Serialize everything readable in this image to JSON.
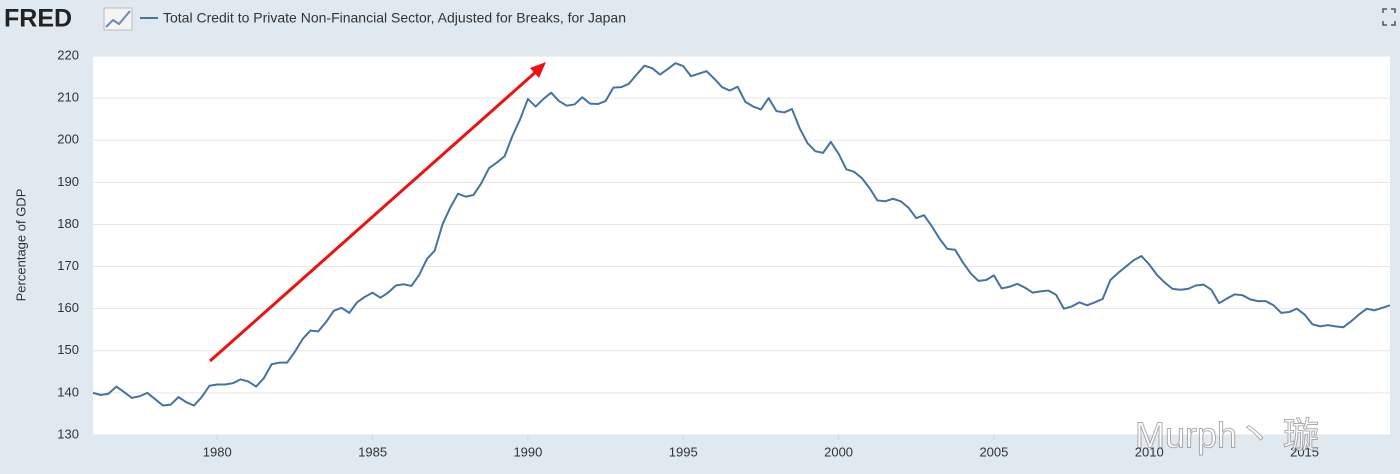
{
  "brand": "FRED",
  "watermark": "Murph丶 璇",
  "chart_data": {
    "type": "line",
    "y_label": "Percentage of GDP",
    "x": [
      1976,
      1976.25,
      1976.5,
      1976.75,
      1977,
      1977.25,
      1977.5,
      1977.75,
      1978,
      1978.25,
      1978.5,
      1978.75,
      1979,
      1979.25,
      1979.5,
      1979.75,
      1980,
      1980.25,
      1980.5,
      1980.75,
      1981,
      1981.25,
      1981.5,
      1981.75,
      1982,
      1982.25,
      1982.5,
      1982.75,
      1983,
      1983.25,
      1983.5,
      1983.75,
      1984,
      1984.25,
      1984.5,
      1984.75,
      1985,
      1985.25,
      1985.5,
      1985.75,
      1986,
      1986.25,
      1986.5,
      1986.75,
      1987,
      1987.25,
      1987.5,
      1987.75,
      1988,
      1988.25,
      1988.5,
      1988.75,
      1989,
      1989.25,
      1989.5,
      1989.75,
      1990,
      1990.25,
      1990.5,
      1990.75,
      1991,
      1991.25,
      1991.5,
      1991.75,
      1992,
      1992.25,
      1992.5,
      1992.75,
      1993,
      1993.25,
      1993.5,
      1993.75,
      1994,
      1994.25,
      1994.5,
      1994.75,
      1995,
      1995.25,
      1995.5,
      1995.75,
      1996,
      1996.25,
      1996.5,
      1996.75,
      1997,
      1997.25,
      1997.5,
      1997.75,
      1998,
      1998.25,
      1998.5,
      1998.75,
      1999,
      1999.25,
      1999.5,
      1999.75,
      2000,
      2000.25,
      2000.5,
      2000.75,
      2001,
      2001.25,
      2001.5,
      2001.75,
      2002,
      2002.25,
      2002.5,
      2002.75,
      2003,
      2003.25,
      2003.5,
      2003.75,
      2004,
      2004.25,
      2004.5,
      2004.75,
      2005,
      2005.25,
      2005.5,
      2005.75,
      2006,
      2006.25,
      2006.5,
      2006.75,
      2007,
      2007.25,
      2007.5,
      2007.75,
      2008,
      2008.25,
      2008.5,
      2008.75,
      2009,
      2009.25,
      2009.5,
      2009.75,
      2010,
      2010.25,
      2010.5,
      2010.75,
      2011,
      2011.25,
      2011.5,
      2011.75,
      2012,
      2012.25,
      2012.5,
      2012.75,
      2013,
      2013.25,
      2013.5,
      2013.75,
      2014,
      2014.25,
      2014.5,
      2014.75,
      2015,
      2015.25,
      2015.5,
      2015.75,
      2016,
      2016.25,
      2016.5,
      2016.75,
      2017,
      2017.25,
      2017.5,
      2017.75
    ],
    "series": [
      {
        "name": "Total Credit to Private Non-Financial Sector, Adjusted for Breaks, for Japan",
        "color": "#4572a7",
        "values": [
          140,
          139.5,
          139.8,
          141.5,
          140.2,
          138.8,
          139.2,
          140,
          138.5,
          137,
          137.2,
          139,
          137.8,
          137,
          139,
          141.7,
          142,
          142,
          142.3,
          143.2,
          142.7,
          141.5,
          143.5,
          146.8,
          147.2,
          147.2,
          149.8,
          152.8,
          154.8,
          154.6,
          156.8,
          159.5,
          160.2,
          159,
          161.5,
          162.8,
          163.8,
          162.6,
          163.8,
          165.5,
          165.8,
          165.4,
          168,
          171.8,
          173.8,
          180,
          184,
          187.3,
          186.6,
          187,
          189.8,
          193.4,
          194.7,
          196.2,
          201,
          205,
          209.8,
          208,
          209.8,
          211.3,
          209.3,
          208.2,
          208.5,
          210.2,
          208.7,
          208.6,
          209.3,
          212.5,
          212.6,
          213.4,
          215.6,
          217.7,
          217.1,
          215.6,
          216.9,
          218.3,
          217.6,
          215.2,
          215.8,
          216.4,
          214.6,
          212.6,
          211.8,
          212.7,
          209.1,
          208,
          207.3,
          210,
          206.9,
          206.6,
          207.4,
          202.8,
          199.3,
          197.4,
          197,
          199.6,
          196.8,
          193.1,
          192.5,
          191,
          188.6,
          185.7,
          185.5,
          186.1,
          185.5,
          184,
          181.5,
          182.2,
          179.6,
          176.6,
          174.2,
          174,
          171,
          168.4,
          166.6,
          166.8,
          167.9,
          164.8,
          165.2,
          165.9,
          165,
          163.8,
          164.1,
          164.3,
          163.3,
          160,
          160.5,
          161.5,
          160.8,
          161.5,
          162.3,
          166.8,
          168.5,
          170,
          171.5,
          172.5,
          170.5,
          168,
          166.2,
          164.7,
          164.5,
          164.7,
          165.5,
          165.7,
          164.5,
          161.3,
          162.4,
          163.4,
          163.2,
          162.2,
          161.8,
          161.8,
          160.8,
          159,
          159.2,
          160,
          158.6,
          156.3,
          155.8,
          156.1,
          155.8,
          155.6,
          157,
          158.6,
          160,
          159.6,
          160.2,
          160.8
        ]
      }
    ],
    "xlim": [
      1976,
      2017.75
    ],
    "xticks": [
      1980,
      1985,
      1990,
      1995,
      2000,
      2005,
      2010,
      2015
    ],
    "ylim": [
      130,
      220
    ],
    "yticks": [
      130,
      140,
      150,
      160,
      170,
      180,
      190,
      200,
      210,
      220
    ],
    "grid": true
  }
}
